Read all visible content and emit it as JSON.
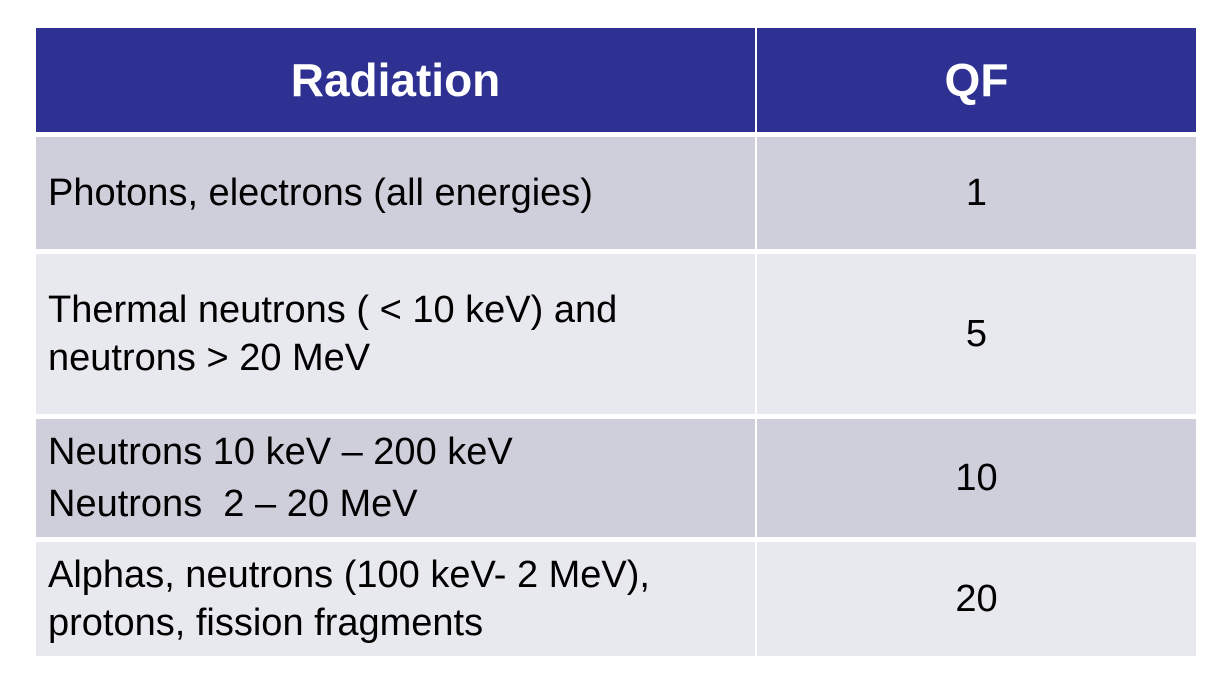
{
  "table": {
    "headers": [
      "Radiation",
      "QF"
    ],
    "rows": [
      {
        "radiation": [
          "Photons, electrons (all energies)"
        ],
        "qf": "1"
      },
      {
        "radiation": [
          "Thermal neutrons ( < 10 keV) and",
          "neutrons > 20 MeV"
        ],
        "qf": "5"
      },
      {
        "radiation": [
          "Neutrons 10 keV – 200 keV",
          "Neutrons  2 – 20 MeV"
        ],
        "qf": "10"
      },
      {
        "radiation": [
          "Alphas, neutrons (100 keV- 2 MeV),",
          "protons, fission fragments"
        ],
        "qf": "20"
      }
    ]
  },
  "colors": {
    "header_bg": "#2e3192",
    "header_text": "#ffffff",
    "row_dark": "#cfcfdc",
    "row_light": "#e8e8ef"
  }
}
